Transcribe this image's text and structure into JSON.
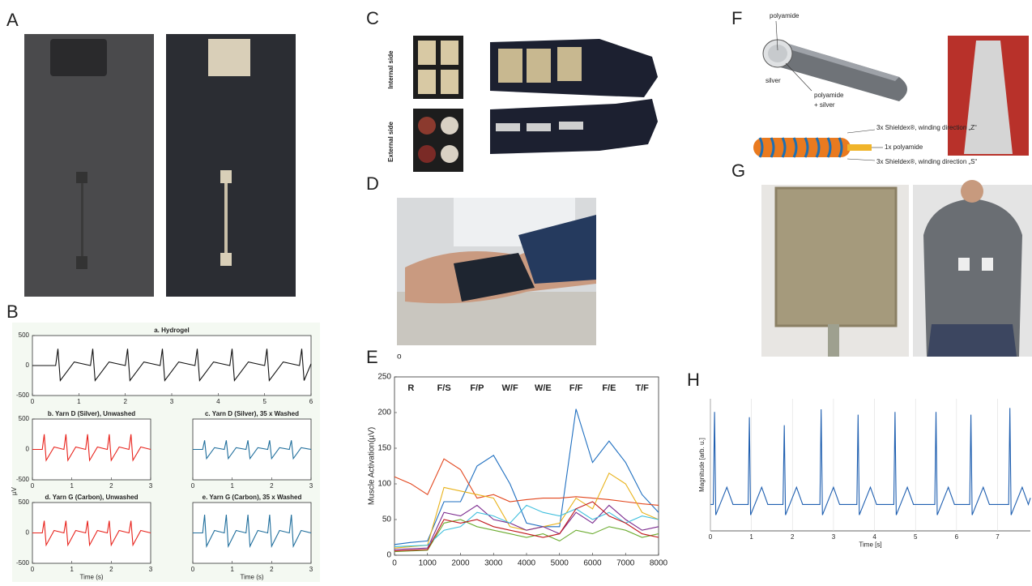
{
  "panel_labels": [
    "A",
    "B",
    "C",
    "D",
    "E",
    "F",
    "G",
    "H"
  ],
  "figure_texts": {
    "internal_side": "Internal side",
    "external_side": "External side",
    "d_caption": "o",
    "f_polyamide_core": "polyamide",
    "f_silver": "silver",
    "f_polyamide_silver_1": "polyamide",
    "f_polyamide_silver_2": "+ silver",
    "f_winding_z": "3x Shieldex®, winding direction „Z“",
    "f_polyamide_1x": "1x polyamide",
    "f_winding_s": "3x Shieldex®, winding direction „S“"
  },
  "chart_data": [
    {
      "type": "line",
      "title": "a. Hydrogel",
      "color": "#111111",
      "xlim": [
        0,
        6
      ],
      "xticks": [
        0,
        1,
        2,
        3,
        4,
        5,
        6
      ],
      "ylim": [
        -500,
        500
      ],
      "yticks": [
        -500,
        0,
        500
      ],
      "x": [
        0,
        0.5,
        0.55,
        0.6,
        0.9,
        1.25,
        1.3,
        1.35,
        1.65,
        2.0,
        2.05,
        2.1,
        2.4,
        2.75,
        2.8,
        2.85,
        3.15,
        3.5,
        3.55,
        3.6,
        3.9,
        4.25,
        4.3,
        4.35,
        4.65,
        5.0,
        5.05,
        5.1,
        5.4,
        5.75,
        5.8,
        5.85,
        6.0
      ],
      "values": [
        0,
        0,
        280,
        -250,
        60,
        0,
        280,
        -250,
        60,
        0,
        280,
        -250,
        60,
        0,
        280,
        -250,
        60,
        0,
        280,
        -250,
        60,
        0,
        280,
        -250,
        60,
        0,
        280,
        -250,
        60,
        0,
        280,
        -250,
        30
      ]
    },
    {
      "type": "line",
      "title": "b. Yarn D (Silver), Unwashed",
      "ylabel": "µV",
      "color": "#e8221b",
      "xlim": [
        0,
        3
      ],
      "xticks": [
        0,
        1,
        2,
        3
      ],
      "ylim": [
        -500,
        500
      ],
      "yticks": [
        -500,
        0,
        500
      ],
      "x": [
        0,
        0.25,
        0.3,
        0.35,
        0.55,
        0.8,
        0.85,
        0.9,
        1.1,
        1.35,
        1.4,
        1.45,
        1.65,
        1.9,
        1.95,
        2.0,
        2.2,
        2.45,
        2.5,
        2.55,
        2.75,
        3.0
      ],
      "values": [
        0,
        0,
        250,
        -180,
        40,
        0,
        250,
        -180,
        40,
        0,
        250,
        -180,
        40,
        0,
        250,
        -180,
        40,
        0,
        250,
        -180,
        40,
        0
      ]
    },
    {
      "type": "line",
      "title": "c. Yarn D (Silver), 35 x Washed",
      "color": "#1f6e9c",
      "xlim": [
        0,
        3
      ],
      "xticks": [
        0,
        1,
        2,
        3
      ],
      "ylim": [
        -500,
        500
      ],
      "x": [
        0,
        0.25,
        0.3,
        0.35,
        0.55,
        0.8,
        0.85,
        0.9,
        1.1,
        1.35,
        1.4,
        1.45,
        1.65,
        1.9,
        1.95,
        2.0,
        2.2,
        2.45,
        2.5,
        2.55,
        2.75,
        3.0
      ],
      "values": [
        0,
        0,
        150,
        -150,
        30,
        0,
        150,
        -150,
        30,
        0,
        150,
        -150,
        30,
        0,
        150,
        -150,
        30,
        0,
        150,
        -150,
        30,
        0
      ]
    },
    {
      "type": "line",
      "title": "d. Yarn G (Carbon), Unwashed",
      "xlabel": "Time (s)",
      "color": "#e8221b",
      "xlim": [
        0,
        3
      ],
      "xticks": [
        0,
        1,
        2,
        3
      ],
      "ylim": [
        -500,
        500
      ],
      "yticks": [
        -500,
        0,
        500
      ],
      "x": [
        0,
        0.25,
        0.3,
        0.35,
        0.55,
        0.8,
        0.85,
        0.9,
        1.1,
        1.35,
        1.4,
        1.45,
        1.65,
        1.9,
        1.95,
        2.0,
        2.2,
        2.45,
        2.5,
        2.55,
        2.75,
        3.0
      ],
      "values": [
        0,
        0,
        200,
        -200,
        40,
        0,
        200,
        -200,
        40,
        0,
        200,
        -200,
        40,
        0,
        200,
        -200,
        40,
        0,
        200,
        -200,
        40,
        0
      ]
    },
    {
      "type": "line",
      "title": "e. Yarn G (Carbon), 35 x Washed",
      "xlabel": "Time (s)",
      "color": "#1f6e9c",
      "xlim": [
        0,
        3
      ],
      "xticks": [
        0,
        1,
        2,
        3
      ],
      "ylim": [
        -500,
        500
      ],
      "x": [
        0,
        0.25,
        0.3,
        0.35,
        0.55,
        0.8,
        0.85,
        0.9,
        1.1,
        1.35,
        1.4,
        1.45,
        1.65,
        1.9,
        1.95,
        2.0,
        2.2,
        2.45,
        2.5,
        2.55,
        2.75,
        3.0
      ],
      "values": [
        0,
        0,
        300,
        -220,
        40,
        0,
        300,
        -220,
        40,
        0,
        300,
        -220,
        40,
        0,
        300,
        -220,
        40,
        0,
        300,
        -220,
        40,
        0
      ]
    },
    {
      "type": "line",
      "ylabel": "Muscle Activation(µV)",
      "xlim": [
        0,
        8000
      ],
      "xticks": [
        0,
        1000,
        2000,
        3000,
        4000,
        5000,
        6000,
        7000,
        8000
      ],
      "ylim": [
        0,
        250
      ],
      "yticks": [
        0,
        50,
        100,
        150,
        200,
        250
      ],
      "annotations": [
        "R",
        "F/S",
        "F/P",
        "W/F",
        "W/E",
        "F/F",
        "F/E",
        "T/F"
      ],
      "x": [
        0,
        500,
        1000,
        1500,
        2000,
        2500,
        3000,
        3500,
        4000,
        4500,
        5000,
        5500,
        6000,
        6500,
        7000,
        7500,
        8000
      ],
      "series": [
        {
          "color": "#1f6fc0",
          "values": [
            15,
            18,
            20,
            75,
            75,
            125,
            140,
            100,
            45,
            40,
            40,
            205,
            130,
            160,
            130,
            85,
            60
          ]
        },
        {
          "color": "#e2461d",
          "values": [
            110,
            100,
            85,
            135,
            120,
            80,
            85,
            75,
            78,
            80,
            80,
            82,
            80,
            78,
            75,
            72,
            70
          ]
        },
        {
          "color": "#e8b21a",
          "values": [
            10,
            12,
            14,
            95,
            90,
            85,
            80,
            40,
            35,
            40,
            45,
            80,
            65,
            115,
            100,
            60,
            50
          ]
        },
        {
          "color": "#7b2a8e",
          "values": [
            8,
            9,
            10,
            60,
            55,
            70,
            50,
            45,
            35,
            40,
            30,
            60,
            45,
            70,
            50,
            35,
            40
          ]
        },
        {
          "color": "#6bab2f",
          "values": [
            5,
            6,
            7,
            45,
            50,
            40,
            35,
            30,
            25,
            30,
            20,
            35,
            30,
            40,
            35,
            25,
            30
          ]
        },
        {
          "color": "#3fbfdd",
          "values": [
            12,
            13,
            14,
            35,
            40,
            60,
            55,
            45,
            70,
            60,
            55,
            65,
            50,
            60,
            45,
            55,
            50
          ]
        },
        {
          "color": "#c0161c",
          "values": [
            6,
            7,
            8,
            50,
            45,
            50,
            40,
            35,
            30,
            25,
            30,
            65,
            75,
            55,
            45,
            30,
            25
          ]
        }
      ]
    },
    {
      "type": "line",
      "xlabel": "Time [s]",
      "ylabel": "Magnitude [arb. u.]",
      "color": "#1f5fb0",
      "grid": true,
      "xlim": [
        0,
        7.8
      ],
      "xticks": [
        0,
        1,
        2,
        3,
        4,
        5,
        6,
        7
      ],
      "ylim": [
        0,
        1
      ],
      "x": [
        0,
        0.07,
        0.1,
        0.13,
        0.4,
        0.55,
        0.92,
        0.95,
        0.98,
        1.25,
        1.4,
        1.77,
        1.8,
        1.83,
        2.1,
        2.25,
        2.67,
        2.7,
        2.73,
        3.0,
        3.15,
        3.57,
        3.6,
        3.63,
        3.9,
        4.05,
        4.47,
        4.5,
        4.53,
        4.8,
        4.95,
        5.47,
        5.5,
        5.53,
        5.8,
        5.95,
        6.32,
        6.35,
        6.38,
        6.65,
        6.8,
        7.27,
        7.3,
        7.33,
        7.6,
        7.75,
        7.8
      ],
      "values": [
        0.2,
        0.2,
        0.9,
        0.12,
        0.33,
        0.2,
        0.2,
        0.86,
        0.12,
        0.33,
        0.2,
        0.2,
        0.8,
        0.12,
        0.33,
        0.2,
        0.2,
        0.92,
        0.12,
        0.33,
        0.2,
        0.2,
        0.88,
        0.12,
        0.33,
        0.2,
        0.2,
        0.9,
        0.12,
        0.33,
        0.2,
        0.2,
        0.9,
        0.12,
        0.33,
        0.2,
        0.2,
        0.88,
        0.12,
        0.33,
        0.2,
        0.2,
        0.93,
        0.12,
        0.33,
        0.2,
        0.25
      ]
    }
  ]
}
